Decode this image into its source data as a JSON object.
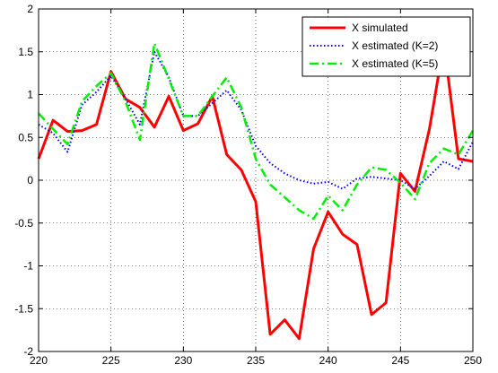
{
  "chart_data": {
    "type": "line",
    "title": "",
    "xlabel": "",
    "ylabel": "",
    "xlim": [
      220,
      250
    ],
    "ylim": [
      -2,
      2
    ],
    "xticks": [
      220,
      225,
      230,
      235,
      240,
      245,
      250
    ],
    "yticks": [
      -2,
      -1.5,
      -1,
      -0.5,
      0,
      0.5,
      1,
      1.5,
      2
    ],
    "grid": true,
    "legend_position": "top-right",
    "x": [
      220,
      221,
      222,
      223,
      224,
      225,
      226,
      227,
      228,
      229,
      230,
      231,
      232,
      233,
      234,
      235,
      236,
      237,
      238,
      239,
      240,
      241,
      242,
      243,
      244,
      245,
      246,
      247,
      248,
      249,
      250
    ],
    "series": [
      {
        "name": "X simulated",
        "color": "#ff0000",
        "style": "solid",
        "values": [
          0.25,
          0.7,
          0.57,
          0.58,
          0.65,
          1.27,
          0.95,
          0.85,
          0.62,
          0.98,
          0.58,
          0.66,
          0.98,
          0.3,
          0.12,
          -0.25,
          -1.8,
          -1.63,
          -1.85,
          -0.8,
          -0.37,
          -0.63,
          -0.75,
          -1.57,
          -1.43,
          0.08,
          -0.13,
          0.6,
          1.6,
          0.25,
          0.22
        ]
      },
      {
        "name": "X estimated (K=2)",
        "color": "#0000ff",
        "style": "dotted",
        "values": [
          0.65,
          0.55,
          0.33,
          0.88,
          1.03,
          1.22,
          0.95,
          0.65,
          1.5,
          1.2,
          0.75,
          0.75,
          0.9,
          1.05,
          0.82,
          0.4,
          0.2,
          0.08,
          0.0,
          -0.04,
          -0.02,
          -0.1,
          0.02,
          0.04,
          0.02,
          0.0,
          -0.1,
          0.05,
          0.22,
          0.13,
          0.45
        ]
      },
      {
        "name": "X estimated (K=5)",
        "color": "#00ee00",
        "style": "dashdot",
        "values": [
          0.78,
          0.6,
          0.42,
          0.92,
          1.1,
          1.25,
          0.92,
          0.47,
          1.6,
          1.18,
          0.75,
          0.75,
          0.98,
          1.2,
          0.85,
          0.25,
          -0.05,
          -0.2,
          -0.35,
          -0.45,
          -0.18,
          -0.35,
          -0.05,
          0.15,
          0.12,
          -0.03,
          -0.22,
          0.2,
          0.37,
          0.3,
          0.58
        ]
      }
    ]
  }
}
